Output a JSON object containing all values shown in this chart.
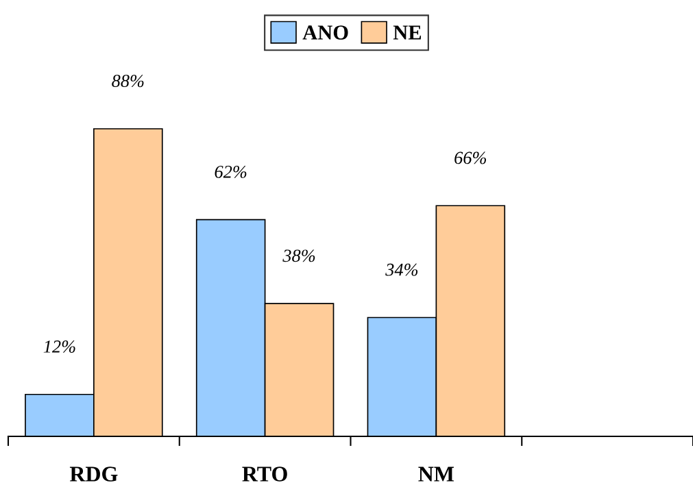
{
  "chart_data": {
    "type": "bar",
    "categories": [
      "RDG",
      "RTO",
      "NM",
      null
    ],
    "series": [
      {
        "name": "ANO",
        "color": "#99ccff",
        "values": [
          12,
          62,
          34,
          null
        ],
        "value_labels": [
          "12%",
          "62%",
          "34%",
          null
        ]
      },
      {
        "name": "NE",
        "color": "#ffcc99",
        "values": [
          88,
          38,
          66,
          null
        ],
        "value_labels": [
          "88%",
          "38%",
          "66%",
          null
        ]
      }
    ],
    "legend": "top",
    "grid": false,
    "tick_labels": "x"
  }
}
